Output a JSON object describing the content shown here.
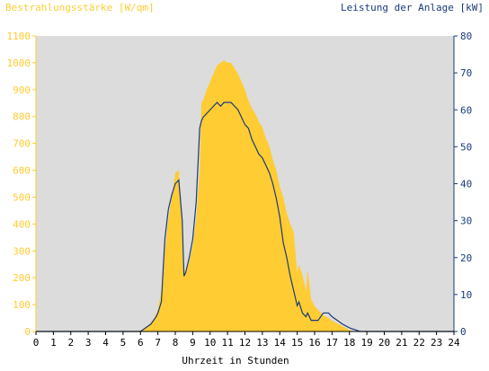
{
  "colors": {
    "plot_bg": "#dcdcdc",
    "irradiance": "#ffcc33",
    "power": "#1a3a7a",
    "bottom_text": "#000000"
  },
  "chart_data": {
    "type": "area",
    "xlabel": "Uhrzeit in Stunden",
    "ylabel_left": "Bestrahlungsstärke [W/qm]",
    "ylabel_right": "Leistung der Anlage [kW]",
    "xlim": [
      0,
      24
    ],
    "ylim_left": [
      0,
      1100
    ],
    "ylim_right": [
      0,
      80
    ],
    "x_ticks": [
      0,
      1,
      2,
      3,
      4,
      5,
      6,
      7,
      8,
      9,
      10,
      11,
      12,
      13,
      14,
      15,
      16,
      17,
      18,
      19,
      20,
      21,
      22,
      23,
      24
    ],
    "y_ticks_left": [
      0,
      100,
      200,
      300,
      400,
      500,
      600,
      700,
      800,
      900,
      1000,
      1100
    ],
    "y_ticks_right": [
      0,
      10,
      20,
      30,
      40,
      50,
      60,
      70,
      80
    ],
    "grid": false,
    "series": [
      {
        "name": "Bestrahlungsstärke [W/qm]",
        "axis": "left",
        "kind": "area",
        "x": [
          0,
          5.9,
          6.2,
          6.5,
          6.8,
          7.0,
          7.2,
          7.4,
          7.6,
          7.8,
          8.0,
          8.2,
          8.4,
          8.5,
          8.6,
          8.8,
          9.0,
          9.2,
          9.4,
          9.5,
          9.6,
          9.8,
          10.0,
          10.2,
          10.4,
          10.6,
          10.8,
          11.0,
          11.2,
          11.4,
          11.6,
          11.8,
          12.0,
          12.2,
          12.4,
          12.6,
          12.8,
          13.0,
          13.2,
          13.4,
          13.6,
          13.8,
          14.0,
          14.2,
          14.4,
          14.6,
          14.8,
          15.0,
          15.1,
          15.3,
          15.5,
          15.6,
          15.8,
          16.0,
          16.2,
          16.5,
          16.8,
          17.0,
          17.3,
          17.6,
          18.0,
          18.3,
          18.6,
          18.9,
          19.1,
          24
        ],
        "y": [
          0,
          0,
          10,
          25,
          50,
          80,
          150,
          300,
          420,
          500,
          590,
          600,
          420,
          230,
          220,
          260,
          320,
          420,
          600,
          850,
          860,
          900,
          930,
          960,
          990,
          1000,
          1010,
          1000,
          1000,
          980,
          960,
          930,
          900,
          860,
          830,
          810,
          780,
          760,
          720,
          690,
          640,
          600,
          540,
          500,
          440,
          400,
          370,
          220,
          250,
          210,
          150,
          230,
          120,
          95,
          80,
          60,
          50,
          40,
          30,
          20,
          5,
          0,
          0,
          0,
          0,
          0
        ]
      },
      {
        "name": "Leistung der Anlage [kW]",
        "axis": "right",
        "kind": "line",
        "x": [
          0,
          6.0,
          6.3,
          6.6,
          6.9,
          7.0,
          7.2,
          7.4,
          7.6,
          7.8,
          8.0,
          8.2,
          8.4,
          8.5,
          8.6,
          8.8,
          9.0,
          9.2,
          9.4,
          9.5,
          9.6,
          9.8,
          10.0,
          10.2,
          10.4,
          10.6,
          10.8,
          11.0,
          11.2,
          11.4,
          11.6,
          11.8,
          12.0,
          12.2,
          12.4,
          12.6,
          12.8,
          13.0,
          13.2,
          13.4,
          13.6,
          13.8,
          14.0,
          14.2,
          14.4,
          14.6,
          14.8,
          15.0,
          15.1,
          15.3,
          15.5,
          15.6,
          15.8,
          16.0,
          16.2,
          16.5,
          16.8,
          17.0,
          17.3,
          17.6,
          18.0,
          18.3,
          18.6,
          18.9,
          19.1,
          24
        ],
        "y": [
          0,
          0,
          1,
          2,
          4,
          5,
          8,
          25,
          33,
          37,
          40,
          41,
          30,
          15,
          16,
          20,
          25,
          35,
          55,
          57,
          58,
          59,
          60,
          61,
          62,
          61,
          62,
          62,
          62,
          61,
          60,
          58,
          56,
          55,
          52,
          50,
          48,
          47,
          45,
          43,
          40,
          36,
          31,
          24,
          20,
          15,
          11,
          7,
          8,
          5,
          4,
          5,
          3,
          3,
          3,
          5,
          5,
          4,
          3,
          2,
          1,
          0.5,
          0,
          0,
          0,
          0
        ]
      }
    ]
  }
}
